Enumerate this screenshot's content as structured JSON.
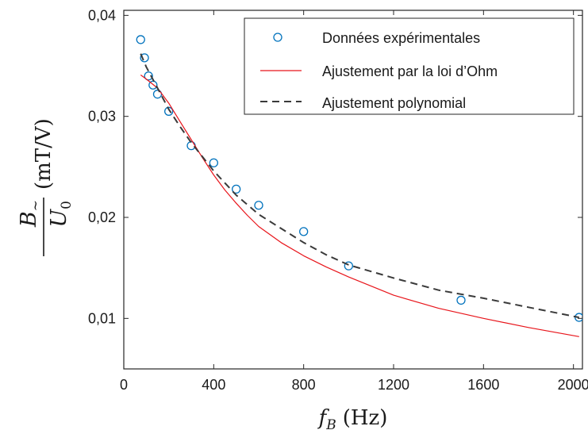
{
  "chart_data": {
    "type": "scatter",
    "xlim": [
      0,
      2040
    ],
    "ylim": [
      0.005,
      0.0405
    ],
    "x_ticks": [
      0,
      400,
      800,
      1200,
      1600,
      2000
    ],
    "x_tick_labels": [
      "0",
      "400",
      "800",
      "1200",
      "1600",
      "2000"
    ],
    "y_ticks": [
      0.01,
      0.02,
      0.03,
      0.04
    ],
    "y_tick_labels": [
      "0,01",
      "0,02",
      "0,03",
      "0,04"
    ],
    "xlabel": {
      "var": "f",
      "sub": "B",
      "unit": "(Hz)"
    },
    "ylabel": {
      "num_var": "B",
      "num_sub": "~",
      "den_var": "U",
      "den_sub": "0",
      "unit": "(mT/V)"
    },
    "legend_position": "top-right",
    "grid": false,
    "series": [
      {
        "name": "Données expérimentales",
        "kind": "markers",
        "color": "#0072BD",
        "x": [
          75,
          92,
          110,
          130,
          150,
          200,
          300,
          400,
          500,
          600,
          800,
          1000,
          1500,
          2025
        ],
        "y": [
          0.0376,
          0.0358,
          0.034,
          0.0331,
          0.0322,
          0.0305,
          0.0271,
          0.0254,
          0.0228,
          0.0212,
          0.0186,
          0.0152,
          0.0118,
          0.0101
        ]
      },
      {
        "name": "Ajustement par la loi d’Ohm",
        "kind": "line",
        "color": "#E8151B",
        "x": [
          75,
          100,
          150,
          200,
          250,
          300,
          350,
          400,
          450,
          500,
          550,
          600,
          700,
          800,
          900,
          1000,
          1200,
          1400,
          1600,
          1800,
          2025
        ],
        "y": [
          0.0341,
          0.0337,
          0.0328,
          0.0313,
          0.0295,
          0.0277,
          0.0259,
          0.0242,
          0.0227,
          0.0214,
          0.0202,
          0.0191,
          0.0175,
          0.0162,
          0.0151,
          0.0141,
          0.0123,
          0.011,
          0.01,
          0.0091,
          0.0082
        ]
      },
      {
        "name": "Ajustement polynomial",
        "kind": "dashed-line",
        "color": "#3A3A3A",
        "x": [
          75,
          100,
          150,
          200,
          250,
          300,
          400,
          500,
          600,
          700,
          800,
          900,
          1000,
          1200,
          1400,
          1600,
          1800,
          2025
        ],
        "y": [
          0.0362,
          0.0349,
          0.0328,
          0.0307,
          0.029,
          0.0274,
          0.0246,
          0.0222,
          0.0203,
          0.0189,
          0.0175,
          0.0163,
          0.0153,
          0.014,
          0.0128,
          0.012,
          0.0111,
          0.0101
        ]
      }
    ]
  }
}
